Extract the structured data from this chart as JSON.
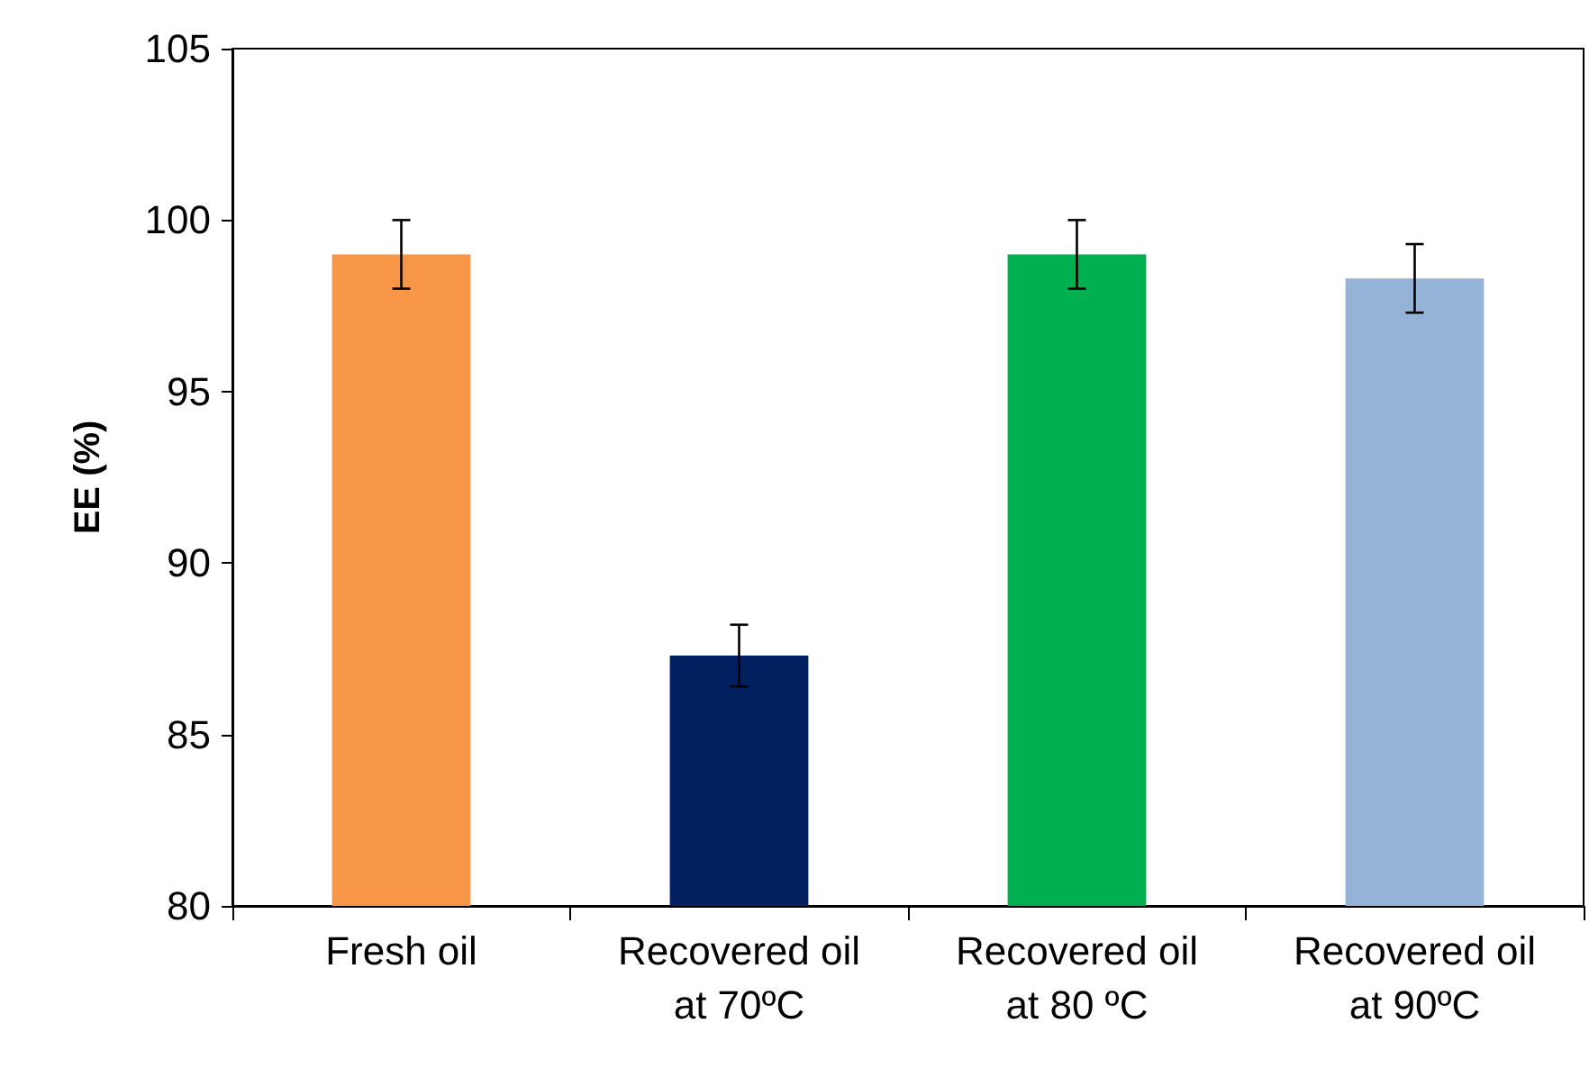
{
  "chart_data": {
    "type": "bar",
    "ylabel": "EE (%)",
    "categories": [
      "Fresh oil",
      "Recovered oil\nat 70ºC",
      "Recovered oil\nat 80 ºC",
      "Recovered oil\nat 90ºC"
    ],
    "values": [
      99.0,
      87.3,
      99.0,
      98.3
    ],
    "colors": [
      "#f79646",
      "#002060",
      "#00b050",
      "#95b3d7"
    ],
    "errors": [
      1.0,
      0.9,
      1.0,
      1.0
    ],
    "ylim": [
      80,
      105
    ],
    "yticks": [
      80,
      85,
      90,
      95,
      100,
      105
    ],
    "grid": false
  }
}
